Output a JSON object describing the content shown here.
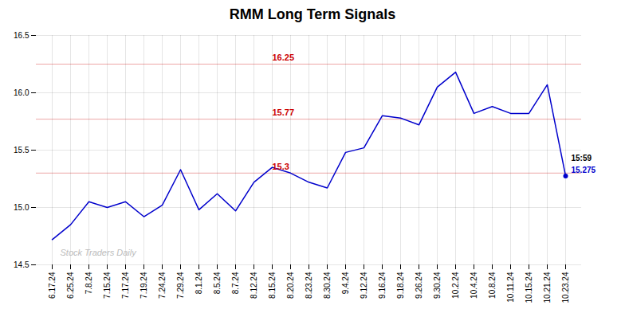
{
  "chart_data": {
    "type": "line",
    "title": "RMM Long Term Signals",
    "categories": [
      "6.17.24",
      "6.25.24",
      "7.8.24",
      "7.15.24",
      "7.17.24",
      "7.19.24",
      "7.24.24",
      "7.29.24",
      "8.1.24",
      "8.5.24",
      "8.7.24",
      "8.12.24",
      "8.15.24",
      "8.20.24",
      "8.23.24",
      "8.30.24",
      "9.4.24",
      "9.12.24",
      "9.16.24",
      "9.18.24",
      "9.26.24",
      "9.30.24",
      "10.2.24",
      "10.4.24",
      "10.8.24",
      "10.11.24",
      "10.15.24",
      "10.21.24",
      "10.23.24"
    ],
    "values": [
      14.72,
      14.85,
      15.05,
      15.0,
      15.05,
      14.92,
      15.02,
      15.33,
      14.98,
      15.12,
      14.97,
      15.22,
      15.35,
      15.3,
      15.22,
      15.17,
      15.48,
      15.52,
      15.8,
      15.78,
      15.72,
      16.05,
      16.18,
      15.82,
      15.88,
      15.82,
      15.82,
      16.07,
      15.275
    ],
    "color": "#0000cc",
    "ylim": [
      14.5,
      16.5
    ],
    "yticks": [
      {
        "value": 14.5,
        "label": "14.5"
      },
      {
        "value": 15,
        "label": "15.0"
      },
      {
        "value": 15.5,
        "label": "15.5"
      },
      {
        "value": 16,
        "label": "16.0"
      },
      {
        "value": 16.5,
        "label": "16.5"
      }
    ],
    "grid": true,
    "reference_lines": [
      {
        "value": 15.3,
        "label": "15.3",
        "color": "#cc0000"
      },
      {
        "value": 15.77,
        "label": "15.77",
        "color": "#cc0000"
      },
      {
        "value": 16.25,
        "label": "16.25",
        "color": "#cc0000"
      }
    ],
    "annotations": [
      {
        "text": "15:59",
        "category": "10.23.24"
      },
      {
        "text": "15.275",
        "category": "10.23.24",
        "value": 15.275,
        "color": "#0000cc"
      },
      {
        "text": "Stock Traders Daily",
        "color": "#bbbbbb"
      }
    ]
  }
}
